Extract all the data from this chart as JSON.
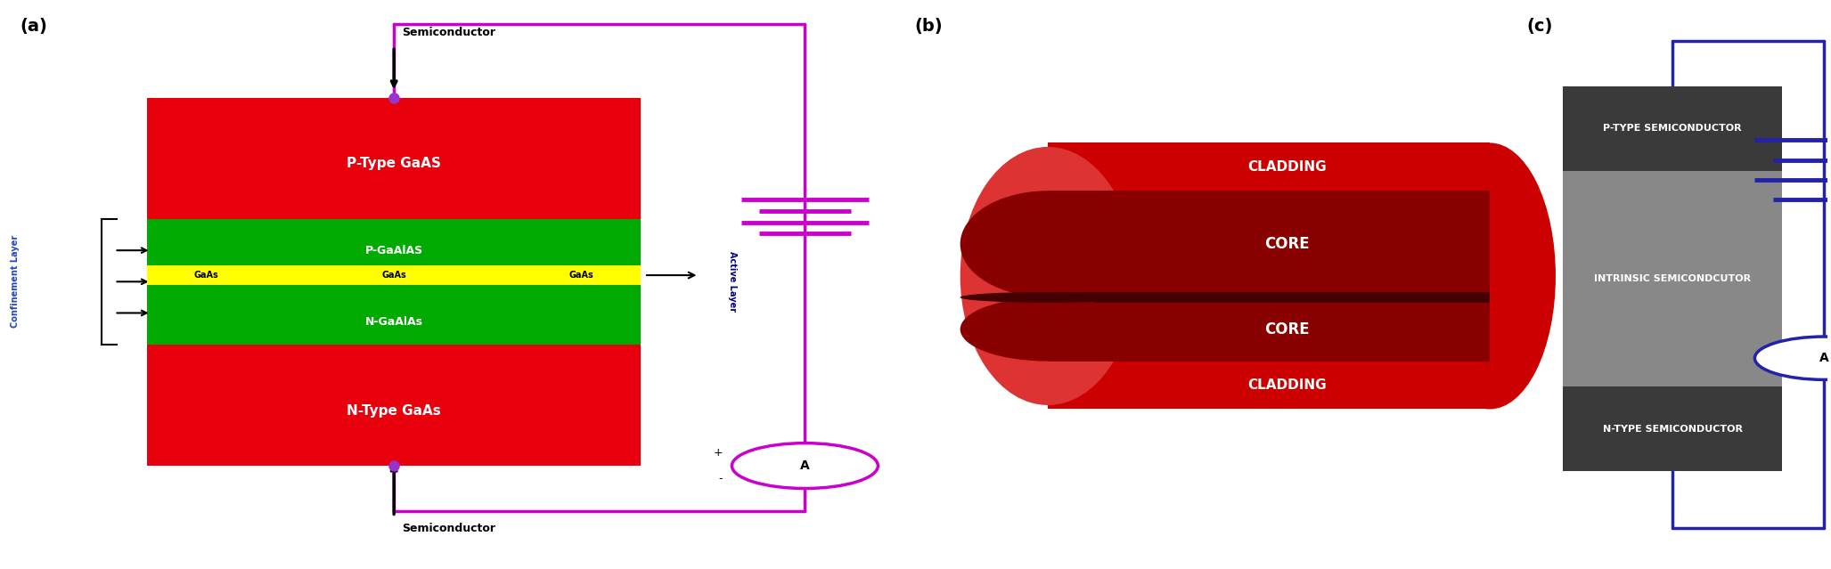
{
  "bg_color": "#ffffff",
  "panel_a": {
    "label": "(a)",
    "p_type_color": "#e8000d",
    "n_type_color": "#e8000d",
    "p_gaAlAs_color": "#00aa00",
    "n_gaAlAs_color": "#00aa00",
    "GaAs_color": "#ffff00",
    "p_type_label": "P-Type GaAS",
    "n_type_label": "N-Type GaAs",
    "p_gaAlAs_label": "P-GaAlAS",
    "n_gaAlAs_label": "N-GaAlAs",
    "gaas_label": "GaAs",
    "semiconductor_label": "Semiconductor",
    "confinement_label": "Confinement Layer",
    "active_label": "Active Layer",
    "wire_color": "#cc00cc",
    "dot_color": "#9933cc",
    "text_color": "#ffffff",
    "label_color": "#000000"
  },
  "panel_b": {
    "label": "(b)",
    "cladding_color": "#cc0000",
    "core_color": "#880000",
    "dark_color": "#440000",
    "left_cap_color": "#dd3333",
    "cladding_label": "CLADDING",
    "core_label": "CORE",
    "text_color": "#ffffff"
  },
  "panel_c": {
    "label": "(c)",
    "p_type_color": "#3a3a3a",
    "intrinsic_color": "#888888",
    "n_type_color": "#3a3a3a",
    "p_label": "P-TYPE SEMICONDUCTOR",
    "i_label": "INTRINSIC SEMICONDCUTOR",
    "n_label": "N-TYPE SEMICONDUCTOR",
    "wire_color": "#2222aa",
    "text_color": "#ffffff"
  }
}
